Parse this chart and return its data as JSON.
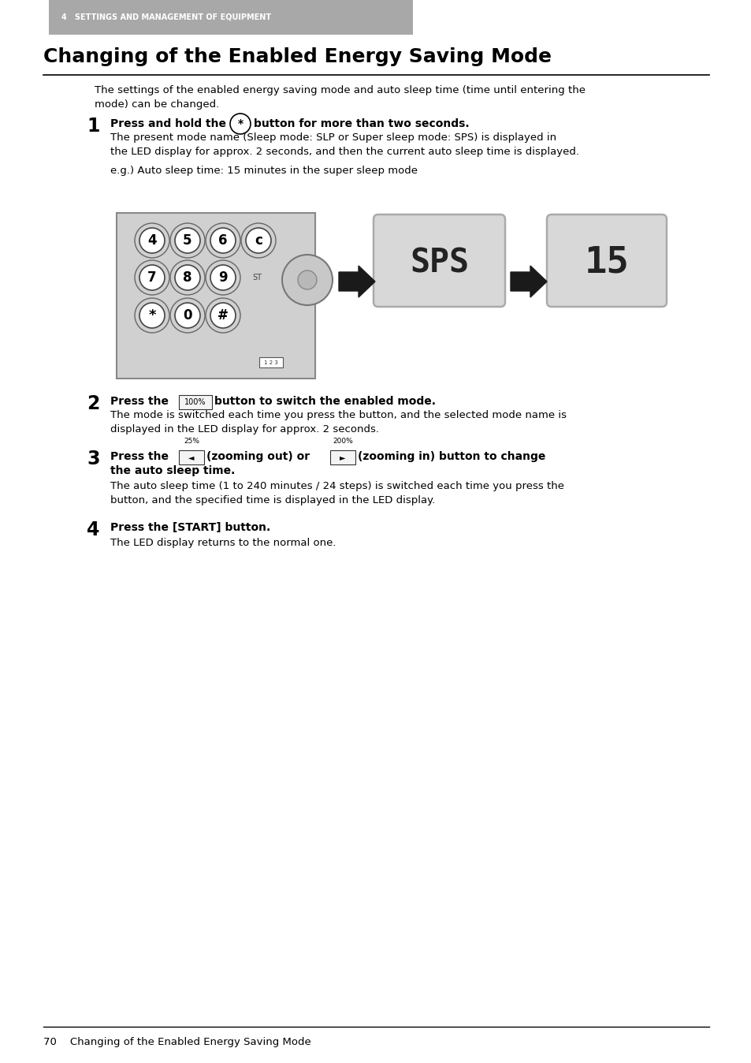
{
  "page_bg": "#ffffff",
  "header_bg": "#a8a8a8",
  "header_text": "4   SETTINGS AND MANAGEMENT OF EQUIPMENT",
  "header_text_color": "#ffffff",
  "title": "Changing of the Enabled Energy Saving Mode",
  "footer_text": "70    Changing of the Enabled Energy Saving Mode",
  "intro_text": "The settings of the enabled energy saving mode and auto sleep time (time until entering the\nmode) can be changed.",
  "step1_bold1": "Press and hold the",
  "step1_bold2": "button for more than two seconds.",
  "step1_body": "The present mode name (Sleep mode: SLP or Super sleep mode: SPS) is displayed in\nthe LED display for approx. 2 seconds, and then the current auto sleep time is displayed.",
  "step1_eg": "e.g.) Auto sleep time: 15 minutes in the super sleep mode",
  "step2_bold1": "Press the",
  "step2_bold2": "button to switch the enabled mode.",
  "step2_body": "The mode is switched each time you press the button, and the selected mode name is\ndisplayed in the LED display for approx. 2 seconds.",
  "step3_bold1": "Press the",
  "step3_bold2": "(zooming out) or",
  "step3_bold3": "(zooming in) button to change",
  "step3_bold4": "the auto sleep time.",
  "step3_body": "The auto sleep time (1 to 240 minutes / 24 steps) is switched each time you press the\nbutton, and the specified time is displayed in the LED display.",
  "step4_bold": "Press the [START] button.",
  "step4_body": "The LED display returns to the normal one.",
  "keypad_bg": "#d0d0d0",
  "keypad_border": "#888888",
  "btn_bg": "#ffffff",
  "btn_border": "#555555",
  "display_bg": "#d8d8d8",
  "display_border": "#aaaaaa",
  "arrow_color": "#1a1a1a"
}
